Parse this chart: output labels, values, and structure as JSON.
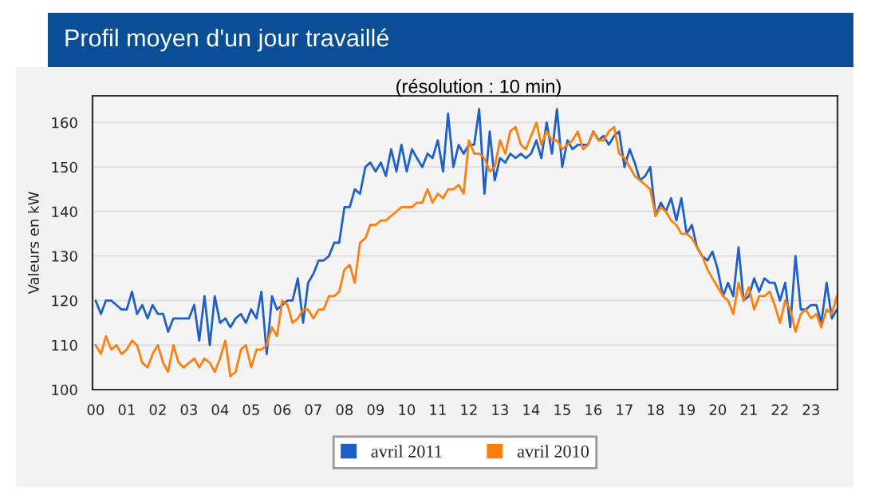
{
  "chart_data": {
    "type": "line",
    "title": "Profil moyen d'un jour travaillé",
    "subtitle": "(résolution : 10 min)",
    "ylabel": "Valeurs en kW",
    "x": [
      0,
      0.17,
      0.33,
      0.5,
      0.67,
      0.83,
      1,
      1.17,
      1.33,
      1.5,
      1.67,
      1.83,
      2,
      2.17,
      2.33,
      2.5,
      2.67,
      2.83,
      3,
      3.17,
      3.33,
      3.5,
      3.67,
      3.83,
      4,
      4.17,
      4.33,
      4.5,
      4.67,
      4.83,
      5,
      5.17,
      5.33,
      5.5,
      5.67,
      5.83,
      6,
      6.17,
      6.33,
      6.5,
      6.67,
      6.83,
      7,
      7.17,
      7.33,
      7.5,
      7.67,
      7.83,
      8,
      8.17,
      8.33,
      8.5,
      8.67,
      8.83,
      9,
      9.17,
      9.33,
      9.5,
      9.67,
      9.83,
      10,
      10.17,
      10.33,
      10.5,
      10.67,
      10.83,
      11,
      11.17,
      11.33,
      11.5,
      11.67,
      11.83,
      12,
      12.17,
      12.33,
      12.5,
      12.67,
      12.83,
      13,
      13.17,
      13.33,
      13.5,
      13.67,
      13.83,
      14,
      14.17,
      14.33,
      14.5,
      14.67,
      14.83,
      15,
      15.17,
      15.33,
      15.5,
      15.67,
      15.83,
      16,
      16.17,
      16.33,
      16.5,
      16.67,
      16.83,
      17,
      17.17,
      17.33,
      17.5,
      17.67,
      17.83,
      18,
      18.17,
      18.33,
      18.5,
      18.67,
      18.83,
      19,
      19.17,
      19.33,
      19.5,
      19.67,
      19.83,
      20,
      20.17,
      20.33,
      20.5,
      20.67,
      20.83,
      21,
      21.17,
      21.33,
      21.5,
      21.67,
      21.83,
      22,
      22.17,
      22.33,
      22.5,
      22.67,
      22.83,
      23,
      23.17,
      23.33,
      23.5,
      23.67,
      23.83
    ],
    "series": [
      {
        "name": "avril 2011",
        "color": "#1f5fc8",
        "values": [
          120,
          117,
          120,
          120,
          119,
          118,
          118,
          122,
          117,
          119,
          116,
          119,
          117,
          117,
          113,
          116,
          116,
          116,
          116,
          119,
          111,
          121,
          110,
          121,
          115,
          116,
          114,
          116,
          117,
          115,
          118,
          116,
          122,
          108,
          121,
          118,
          119,
          120,
          120,
          125,
          115,
          124,
          126,
          129,
          129,
          130,
          133,
          133,
          141,
          141,
          145,
          144,
          150,
          151,
          149,
          151,
          148,
          154,
          149,
          155,
          149,
          154,
          152,
          150,
          153,
          152,
          156,
          149,
          162,
          150,
          155,
          153,
          155,
          155,
          163,
          144,
          158,
          147,
          152,
          151,
          153,
          152,
          153,
          152,
          153,
          156,
          152,
          160,
          153,
          163,
          150,
          156,
          154,
          155,
          155,
          155,
          158,
          156,
          157,
          155,
          157,
          158,
          150,
          154,
          151,
          147,
          148,
          150,
          139,
          142,
          140,
          143,
          138,
          143,
          135,
          137,
          132,
          130,
          129,
          131,
          127,
          121,
          124,
          121,
          132,
          120,
          121,
          125,
          122,
          125,
          124,
          124,
          120,
          124,
          114,
          130,
          118,
          118,
          119,
          119,
          115,
          124,
          116,
          118
        ]
      },
      {
        "name": "avril 2010",
        "color": "#ff7f0e",
        "values": [
          110,
          108,
          112,
          109,
          110,
          108,
          109,
          111,
          110,
          106,
          105,
          108,
          110,
          106,
          104,
          110,
          106,
          105,
          106,
          107,
          105,
          107,
          106,
          104,
          107,
          111,
          103,
          104,
          109,
          110,
          105,
          109,
          109,
          110,
          114,
          112,
          120,
          119,
          115,
          116,
          118,
          118,
          116,
          118,
          118,
          121,
          121,
          122,
          127,
          128,
          124,
          133,
          134,
          137,
          137,
          138,
          138,
          139,
          140,
          141,
          141,
          141,
          142,
          142,
          145,
          142,
          144,
          143,
          145,
          145,
          146,
          144,
          156,
          153,
          153,
          152,
          149,
          150,
          156,
          153,
          158,
          159,
          155,
          154,
          157,
          160,
          155,
          158,
          156,
          156,
          154,
          155,
          156,
          158,
          154,
          155,
          158,
          156,
          156,
          158,
          159,
          153,
          152,
          150,
          148,
          147,
          146,
          145,
          139,
          141,
          140,
          138,
          137,
          135,
          135,
          134,
          132,
          130,
          127,
          125,
          123,
          121,
          120,
          117,
          124,
          120,
          123,
          118,
          121,
          121,
          122,
          119,
          115,
          120,
          118,
          113,
          117,
          118,
          116,
          117,
          114,
          118,
          117,
          121
        ]
      }
    ],
    "xlim": [
      -0.1,
      23.85
    ],
    "xticks": [
      {
        "value": 0,
        "label": "00"
      },
      {
        "value": 1,
        "label": "01"
      },
      {
        "value": 2,
        "label": "02"
      },
      {
        "value": 3,
        "label": "03"
      },
      {
        "value": 4,
        "label": "04"
      },
      {
        "value": 5,
        "label": "05"
      },
      {
        "value": 6,
        "label": "06"
      },
      {
        "value": 7,
        "label": "07"
      },
      {
        "value": 8,
        "label": "08"
      },
      {
        "value": 9,
        "label": "09"
      },
      {
        "value": 10,
        "label": "10"
      },
      {
        "value": 11,
        "label": "11"
      },
      {
        "value": 12,
        "label": "12"
      },
      {
        "value": 13,
        "label": "13"
      },
      {
        "value": 14,
        "label": "14"
      },
      {
        "value": 15,
        "label": "15"
      },
      {
        "value": 16,
        "label": "16"
      },
      {
        "value": 17,
        "label": "17"
      },
      {
        "value": 18,
        "label": "18"
      },
      {
        "value": 19,
        "label": "19"
      },
      {
        "value": 20,
        "label": "20"
      },
      {
        "value": 21,
        "label": "21"
      },
      {
        "value": 22,
        "label": "22"
      },
      {
        "value": 23,
        "label": "23"
      }
    ],
    "ylim": [
      100,
      166
    ],
    "yticks": [
      100,
      110,
      120,
      130,
      140,
      150,
      160
    ],
    "grid": "y",
    "legend": "bottom"
  }
}
